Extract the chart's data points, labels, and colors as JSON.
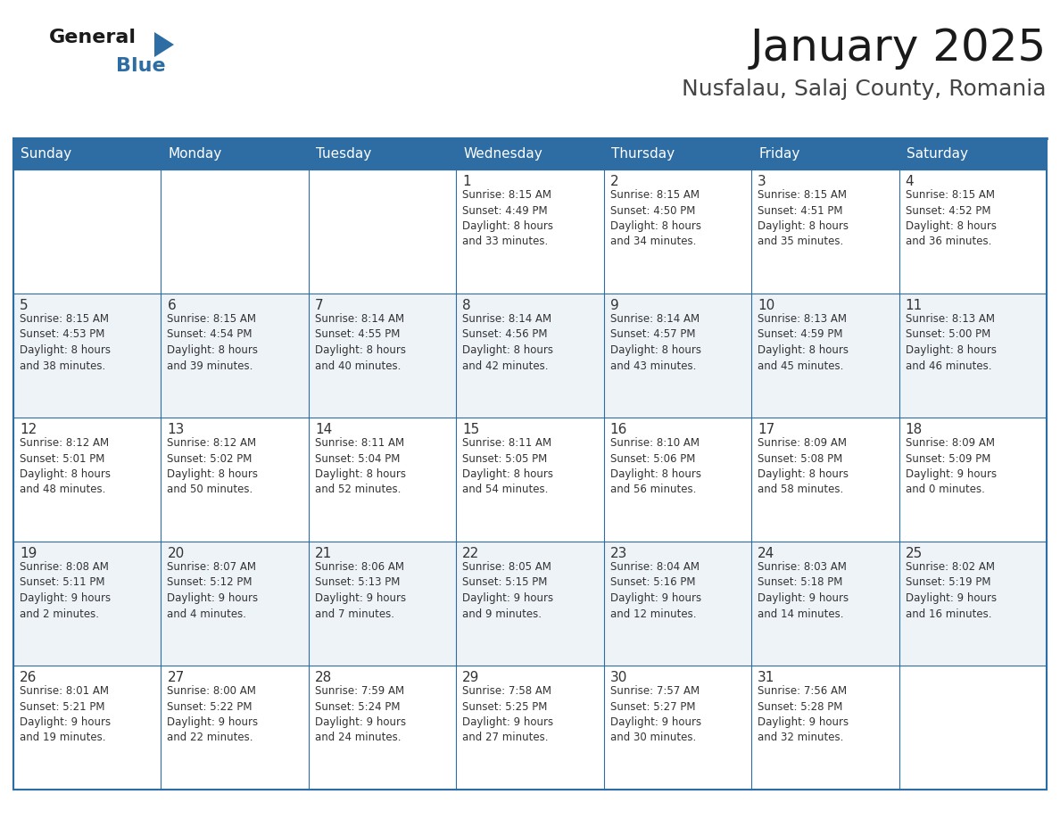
{
  "title": "January 2025",
  "subtitle": "Nusfalau, Salaj County, Romania",
  "header_bg": "#2E6DA4",
  "header_text_color": "#FFFFFF",
  "cell_bg_white": "#FFFFFF",
  "cell_bg_light": "#F0F4F8",
  "border_color": "#2E6DA4",
  "text_color": "#333333",
  "day_headers": [
    "Sunday",
    "Monday",
    "Tuesday",
    "Wednesday",
    "Thursday",
    "Friday",
    "Saturday"
  ],
  "weeks": [
    [
      {
        "day": "",
        "info": ""
      },
      {
        "day": "",
        "info": ""
      },
      {
        "day": "",
        "info": ""
      },
      {
        "day": "1",
        "info": "Sunrise: 8:15 AM\nSunset: 4:49 PM\nDaylight: 8 hours\nand 33 minutes."
      },
      {
        "day": "2",
        "info": "Sunrise: 8:15 AM\nSunset: 4:50 PM\nDaylight: 8 hours\nand 34 minutes."
      },
      {
        "day": "3",
        "info": "Sunrise: 8:15 AM\nSunset: 4:51 PM\nDaylight: 8 hours\nand 35 minutes."
      },
      {
        "day": "4",
        "info": "Sunrise: 8:15 AM\nSunset: 4:52 PM\nDaylight: 8 hours\nand 36 minutes."
      }
    ],
    [
      {
        "day": "5",
        "info": "Sunrise: 8:15 AM\nSunset: 4:53 PM\nDaylight: 8 hours\nand 38 minutes."
      },
      {
        "day": "6",
        "info": "Sunrise: 8:15 AM\nSunset: 4:54 PM\nDaylight: 8 hours\nand 39 minutes."
      },
      {
        "day": "7",
        "info": "Sunrise: 8:14 AM\nSunset: 4:55 PM\nDaylight: 8 hours\nand 40 minutes."
      },
      {
        "day": "8",
        "info": "Sunrise: 8:14 AM\nSunset: 4:56 PM\nDaylight: 8 hours\nand 42 minutes."
      },
      {
        "day": "9",
        "info": "Sunrise: 8:14 AM\nSunset: 4:57 PM\nDaylight: 8 hours\nand 43 minutes."
      },
      {
        "day": "10",
        "info": "Sunrise: 8:13 AM\nSunset: 4:59 PM\nDaylight: 8 hours\nand 45 minutes."
      },
      {
        "day": "11",
        "info": "Sunrise: 8:13 AM\nSunset: 5:00 PM\nDaylight: 8 hours\nand 46 minutes."
      }
    ],
    [
      {
        "day": "12",
        "info": "Sunrise: 8:12 AM\nSunset: 5:01 PM\nDaylight: 8 hours\nand 48 minutes."
      },
      {
        "day": "13",
        "info": "Sunrise: 8:12 AM\nSunset: 5:02 PM\nDaylight: 8 hours\nand 50 minutes."
      },
      {
        "day": "14",
        "info": "Sunrise: 8:11 AM\nSunset: 5:04 PM\nDaylight: 8 hours\nand 52 minutes."
      },
      {
        "day": "15",
        "info": "Sunrise: 8:11 AM\nSunset: 5:05 PM\nDaylight: 8 hours\nand 54 minutes."
      },
      {
        "day": "16",
        "info": "Sunrise: 8:10 AM\nSunset: 5:06 PM\nDaylight: 8 hours\nand 56 minutes."
      },
      {
        "day": "17",
        "info": "Sunrise: 8:09 AM\nSunset: 5:08 PM\nDaylight: 8 hours\nand 58 minutes."
      },
      {
        "day": "18",
        "info": "Sunrise: 8:09 AM\nSunset: 5:09 PM\nDaylight: 9 hours\nand 0 minutes."
      }
    ],
    [
      {
        "day": "19",
        "info": "Sunrise: 8:08 AM\nSunset: 5:11 PM\nDaylight: 9 hours\nand 2 minutes."
      },
      {
        "day": "20",
        "info": "Sunrise: 8:07 AM\nSunset: 5:12 PM\nDaylight: 9 hours\nand 4 minutes."
      },
      {
        "day": "21",
        "info": "Sunrise: 8:06 AM\nSunset: 5:13 PM\nDaylight: 9 hours\nand 7 minutes."
      },
      {
        "day": "22",
        "info": "Sunrise: 8:05 AM\nSunset: 5:15 PM\nDaylight: 9 hours\nand 9 minutes."
      },
      {
        "day": "23",
        "info": "Sunrise: 8:04 AM\nSunset: 5:16 PM\nDaylight: 9 hours\nand 12 minutes."
      },
      {
        "day": "24",
        "info": "Sunrise: 8:03 AM\nSunset: 5:18 PM\nDaylight: 9 hours\nand 14 minutes."
      },
      {
        "day": "25",
        "info": "Sunrise: 8:02 AM\nSunset: 5:19 PM\nDaylight: 9 hours\nand 16 minutes."
      }
    ],
    [
      {
        "day": "26",
        "info": "Sunrise: 8:01 AM\nSunset: 5:21 PM\nDaylight: 9 hours\nand 19 minutes."
      },
      {
        "day": "27",
        "info": "Sunrise: 8:00 AM\nSunset: 5:22 PM\nDaylight: 9 hours\nand 22 minutes."
      },
      {
        "day": "28",
        "info": "Sunrise: 7:59 AM\nSunset: 5:24 PM\nDaylight: 9 hours\nand 24 minutes."
      },
      {
        "day": "29",
        "info": "Sunrise: 7:58 AM\nSunset: 5:25 PM\nDaylight: 9 hours\nand 27 minutes."
      },
      {
        "day": "30",
        "info": "Sunrise: 7:57 AM\nSunset: 5:27 PM\nDaylight: 9 hours\nand 30 minutes."
      },
      {
        "day": "31",
        "info": "Sunrise: 7:56 AM\nSunset: 5:28 PM\nDaylight: 9 hours\nand 32 minutes."
      },
      {
        "day": "",
        "info": ""
      }
    ]
  ],
  "logo_text_general": "General",
  "logo_text_blue": "Blue",
  "logo_color_general": "#1a1a1a",
  "logo_color_blue": "#2E6DA4",
  "logo_triangle_color": "#2E6DA4",
  "title_fontsize": 36,
  "subtitle_fontsize": 18,
  "header_fontsize": 11,
  "day_num_fontsize": 11,
  "info_fontsize": 8.5
}
